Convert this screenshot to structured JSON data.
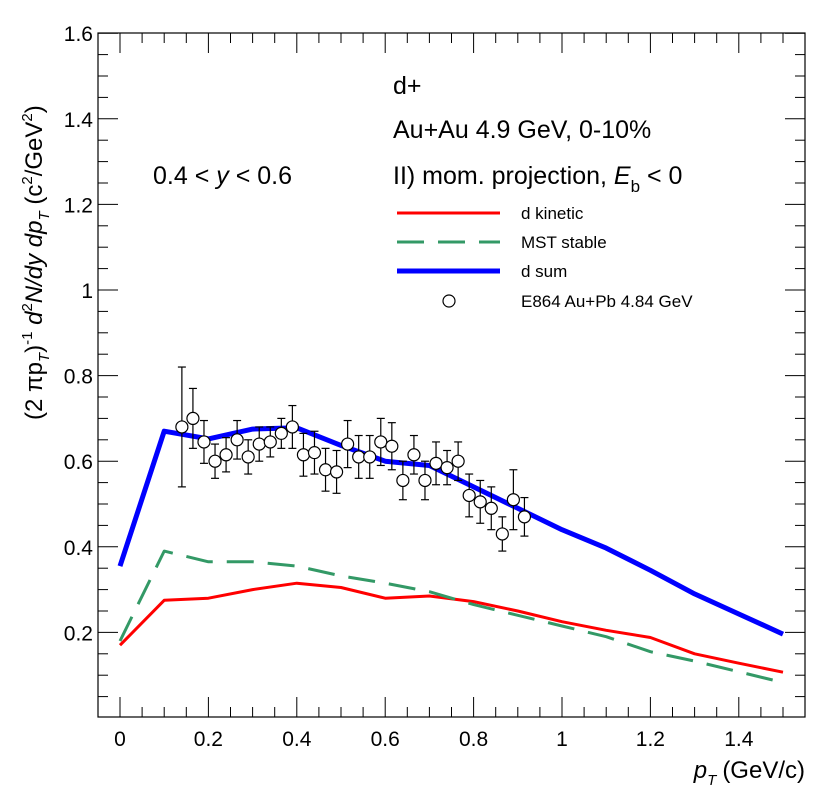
{
  "chart_data": {
    "type": "line",
    "title": "",
    "xlabel_main": "p",
    "xlabel_sub": "T",
    "xlabel_unit": "(GeV/c)",
    "ylabel_parts": [
      "(2 πp",
      "T",
      ")",
      "-1",
      " d",
      "2",
      "N/dy dp",
      "T",
      " (c",
      "2",
      "/GeV",
      "2",
      ")"
    ],
    "xlim": [
      -0.05,
      1.55
    ],
    "ylim": [
      0.04,
      1.6
    ],
    "xticks": [
      0,
      0.2,
      0.4,
      0.6,
      0.8,
      1,
      1.2,
      1.4
    ],
    "xtick_labels": [
      "0",
      "0.2",
      "0.4",
      "0.6",
      "0.8",
      "1",
      "1.2",
      "1.4"
    ],
    "yticks": [
      0.2,
      0.4,
      0.6,
      0.8,
      1,
      1.2,
      1.4,
      1.6
    ],
    "ytick_labels": [
      "0.2",
      "0.4",
      "0.6",
      "0.8",
      "1",
      "1.2",
      "1.4",
      "1.6"
    ],
    "annotations": {
      "particle": "d+",
      "system": "Au+Au 4.9 GeV, 0-10%",
      "method": "II) mom. projection, ",
      "method_var": "E",
      "method_sub": "b",
      "method_cond": " < 0",
      "rapidity_low": "0.4 < ",
      "rapidity_var": "y",
      "rapidity_high": " < 0.6"
    },
    "legend_position": "upper-right",
    "series": [
      {
        "name": "d kinetic",
        "color": "#ff0000",
        "style": "solid",
        "x": [
          0,
          0.1,
          0.2,
          0.3,
          0.4,
          0.5,
          0.6,
          0.7,
          0.8,
          0.9,
          1.0,
          1.1,
          1.2,
          1.3,
          1.4,
          1.5
        ],
        "y": [
          0.17,
          0.275,
          0.28,
          0.3,
          0.315,
          0.305,
          0.28,
          0.285,
          0.272,
          0.25,
          0.225,
          0.205,
          0.188,
          0.15,
          0.128,
          0.107
        ]
      },
      {
        "name": "MST stable",
        "color": "#339966",
        "style": "dashed",
        "x": [
          0,
          0.1,
          0.2,
          0.3,
          0.4,
          0.5,
          0.6,
          0.7,
          0.8,
          0.9,
          1.0,
          1.1,
          1.2,
          1.3,
          1.4,
          1.5
        ],
        "y": [
          0.18,
          0.39,
          0.365,
          0.365,
          0.355,
          0.332,
          0.315,
          0.295,
          0.265,
          0.24,
          0.215,
          0.19,
          0.155,
          0.133,
          0.108,
          0.083
        ]
      },
      {
        "name": "d sum",
        "color": "#0000ff",
        "style": "solid-thick",
        "x": [
          0,
          0.1,
          0.2,
          0.3,
          0.4,
          0.5,
          0.6,
          0.7,
          0.8,
          0.9,
          1.0,
          1.1,
          1.2,
          1.3,
          1.4,
          1.5
        ],
        "y": [
          0.355,
          0.67,
          0.652,
          0.675,
          0.678,
          0.637,
          0.6,
          0.59,
          0.54,
          0.49,
          0.44,
          0.397,
          0.345,
          0.29,
          0.243,
          0.196
        ]
      }
    ],
    "measured": {
      "name": "E864 Au+Pb 4.84 GeV",
      "marker": "open-circle",
      "points": [
        {
          "x": 0.14,
          "y": 0.68,
          "err": 0.14
        },
        {
          "x": 0.165,
          "y": 0.7,
          "err": 0.07
        },
        {
          "x": 0.19,
          "y": 0.645,
          "err": 0.05
        },
        {
          "x": 0.215,
          "y": 0.6,
          "err": 0.04
        },
        {
          "x": 0.24,
          "y": 0.615,
          "err": 0.04
        },
        {
          "x": 0.265,
          "y": 0.65,
          "err": 0.045
        },
        {
          "x": 0.29,
          "y": 0.61,
          "err": 0.04
        },
        {
          "x": 0.315,
          "y": 0.64,
          "err": 0.04
        },
        {
          "x": 0.34,
          "y": 0.645,
          "err": 0.035
        },
        {
          "x": 0.365,
          "y": 0.665,
          "err": 0.035
        },
        {
          "x": 0.39,
          "y": 0.68,
          "err": 0.05
        },
        {
          "x": 0.415,
          "y": 0.615,
          "err": 0.05
        },
        {
          "x": 0.44,
          "y": 0.62,
          "err": 0.05
        },
        {
          "x": 0.465,
          "y": 0.58,
          "err": 0.05
        },
        {
          "x": 0.49,
          "y": 0.575,
          "err": 0.05
        },
        {
          "x": 0.515,
          "y": 0.64,
          "err": 0.055
        },
        {
          "x": 0.54,
          "y": 0.61,
          "err": 0.05
        },
        {
          "x": 0.565,
          "y": 0.61,
          "err": 0.05
        },
        {
          "x": 0.59,
          "y": 0.645,
          "err": 0.055
        },
        {
          "x": 0.615,
          "y": 0.635,
          "err": 0.055
        },
        {
          "x": 0.64,
          "y": 0.555,
          "err": 0.045
        },
        {
          "x": 0.665,
          "y": 0.615,
          "err": 0.045
        },
        {
          "x": 0.69,
          "y": 0.555,
          "err": 0.045
        },
        {
          "x": 0.715,
          "y": 0.595,
          "err": 0.05
        },
        {
          "x": 0.74,
          "y": 0.585,
          "err": 0.04
        },
        {
          "x": 0.765,
          "y": 0.6,
          "err": 0.045
        },
        {
          "x": 0.79,
          "y": 0.52,
          "err": 0.05
        },
        {
          "x": 0.815,
          "y": 0.505,
          "err": 0.05
        },
        {
          "x": 0.84,
          "y": 0.49,
          "err": 0.05
        },
        {
          "x": 0.865,
          "y": 0.43,
          "err": 0.04
        },
        {
          "x": 0.89,
          "y": 0.51,
          "err": 0.07
        },
        {
          "x": 0.915,
          "y": 0.47,
          "err": 0.045
        }
      ]
    }
  }
}
